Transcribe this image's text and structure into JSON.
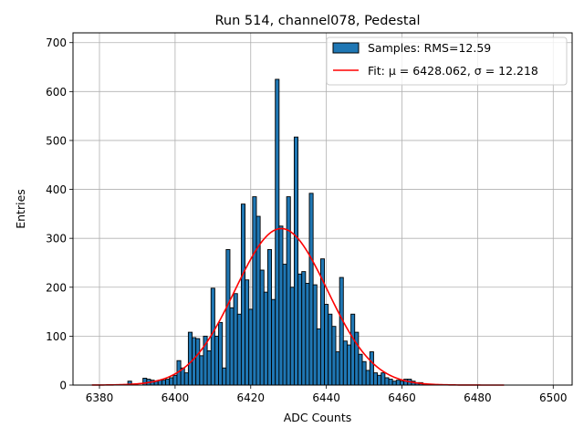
{
  "chart_data": {
    "type": "bar",
    "title": "Run 514, channel078, Pedestal",
    "xlabel": "ADC Counts",
    "ylabel": "Entries",
    "xlim": [
      6373,
      6505
    ],
    "ylim": [
      0,
      720
    ],
    "xticks": [
      6380,
      6400,
      6420,
      6440,
      6460,
      6480,
      6500
    ],
    "yticks": [
      0,
      100,
      200,
      300,
      400,
      500,
      600,
      700
    ],
    "grid": true,
    "legend": "top-right",
    "bar_width": 1,
    "bar_color": "#1f77b4",
    "bar_edge_color": "#000000",
    "fit_color": "#ff0000",
    "series": [
      {
        "name": "Samples: RMS=12.59",
        "x": [
          6388,
          6392,
          6393,
          6394,
          6395,
          6396,
          6397,
          6398,
          6399,
          6400,
          6401,
          6402,
          6403,
          6404,
          6405,
          6406,
          6407,
          6408,
          6409,
          6410,
          6411,
          6412,
          6413,
          6414,
          6415,
          6416,
          6417,
          6418,
          6419,
          6420,
          6421,
          6422,
          6423,
          6424,
          6425,
          6426,
          6427,
          6428,
          6429,
          6430,
          6431,
          6432,
          6433,
          6434,
          6435,
          6436,
          6437,
          6438,
          6439,
          6440,
          6441,
          6442,
          6443,
          6444,
          6445,
          6446,
          6447,
          6448,
          6449,
          6450,
          6451,
          6452,
          6453,
          6454,
          6455,
          6456,
          6457,
          6458,
          6459,
          6460,
          6461,
          6462,
          6463,
          6464,
          6465,
          6466,
          6468
        ],
        "values": [
          8,
          14,
          12,
          10,
          8,
          10,
          10,
          12,
          15,
          20,
          50,
          35,
          25,
          108,
          97,
          95,
          60,
          100,
          70,
          198,
          100,
          128,
          35,
          277,
          158,
          187,
          145,
          370,
          215,
          155,
          385,
          345,
          235,
          190,
          277,
          175,
          625,
          325,
          247,
          385,
          200,
          507,
          227,
          232,
          208,
          392,
          205,
          115,
          258,
          165,
          145,
          120,
          68,
          220,
          90,
          82,
          145,
          108,
          63,
          48,
          30,
          68,
          25,
          20,
          25,
          15,
          12,
          8,
          10,
          8,
          12,
          12,
          8,
          5,
          5,
          3,
          2
        ]
      },
      {
        "name": "Fit: μ = 6428.062, σ = 12.218",
        "type": "line",
        "mu": 6428.062,
        "sigma": 12.218,
        "amplitude": 320,
        "x_range": [
          6378,
          6487
        ]
      }
    ]
  }
}
